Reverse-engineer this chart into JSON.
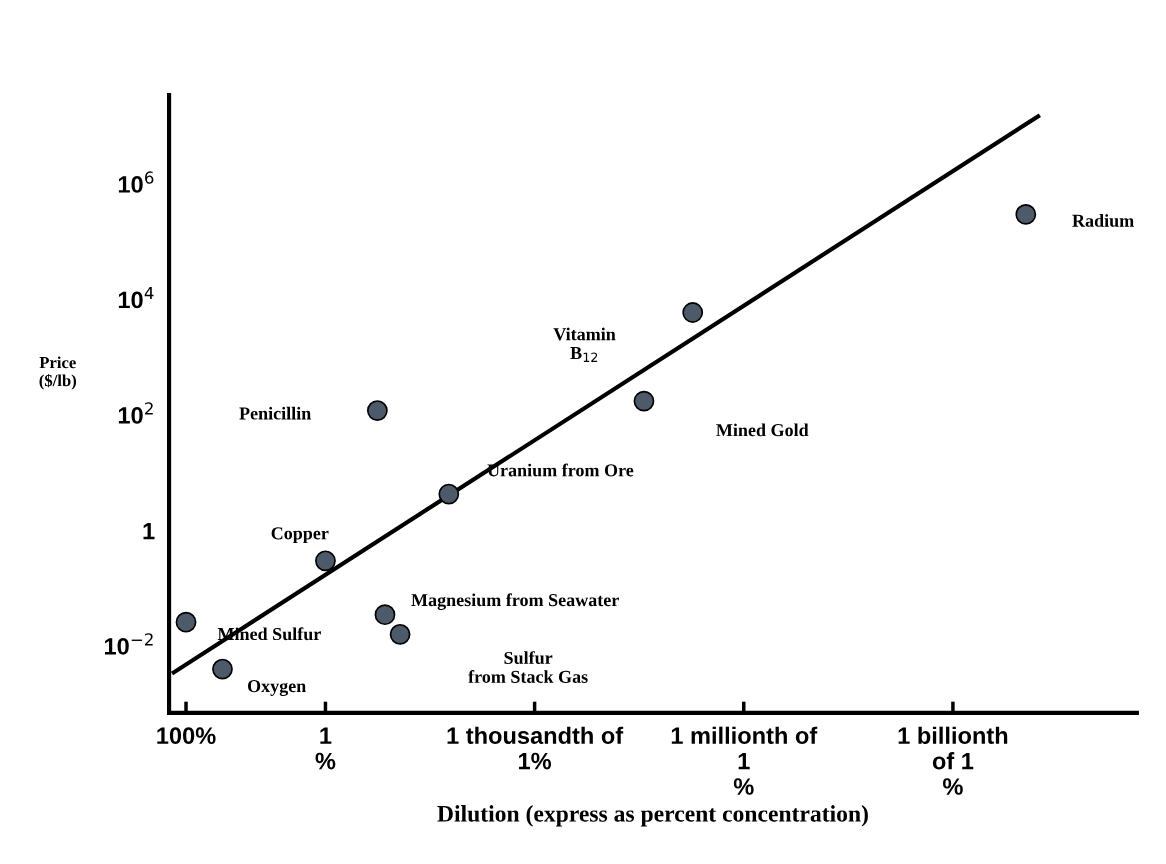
{
  "chart_data": {
    "type": "scatter",
    "xlabel": "Dilution (express as percent concentration)",
    "ylabel": "Price\n($/lb)",
    "log": "xy",
    "xlim": [
      175,
      2.3e-12
    ],
    "ylim": [
      0.0007,
      35000000
    ],
    "xticks": [
      {
        "value": 100,
        "label": "100%"
      },
      {
        "value": 1,
        "label": "1\n%"
      },
      {
        "value": 0.001,
        "label": "1 thousandth of\n1%"
      },
      {
        "value": 1e-06,
        "label": "1 millionth of\n1\n%"
      },
      {
        "value": 1e-09,
        "label": "1 billionth\nof 1\n%"
      }
    ],
    "yticks": [
      {
        "value": 0.01,
        "label": "10$^{−2}$"
      },
      1,
      {
        "value": 100,
        "label": "10$^{2}$"
      },
      {
        "value": 10000,
        "label": "10$^{4}$"
      },
      {
        "value": 1000000,
        "label": "10$^{6}$"
      }
    ],
    "grid": false,
    "legend": false,
    "series": [
      {
        "type": "line",
        "color": "#000000",
        "marker": "none",
        "line_style": "solid",
        "x": [
          150,
          6e-11
        ],
        "values": [
          0.0035,
          15000000
        ]
      },
      {
        "color": "#4d5a6a",
        "marker": "circle",
        "x": [
          100,
          30,
          1,
          0.18,
          0.14,
          0.085,
          0.017,
          2.7e-05,
          5.4e-06,
          9e-11
        ],
        "values": [
          0.026,
          0.004,
          0.3,
          120,
          0.035,
          0.016,
          4.3,
          175,
          6000,
          300000
        ]
      }
    ],
    "annotations": [
      "Mined Sulfur",
      "Oxygen",
      "Copper",
      "Penicillin",
      "Magnesium from Seawater",
      "Sulfur\nfrom Stack Gas",
      "Uranium from Ore",
      "Mined Gold",
      "Vitamin\nB$_{12}$",
      "Radium"
    ]
  }
}
